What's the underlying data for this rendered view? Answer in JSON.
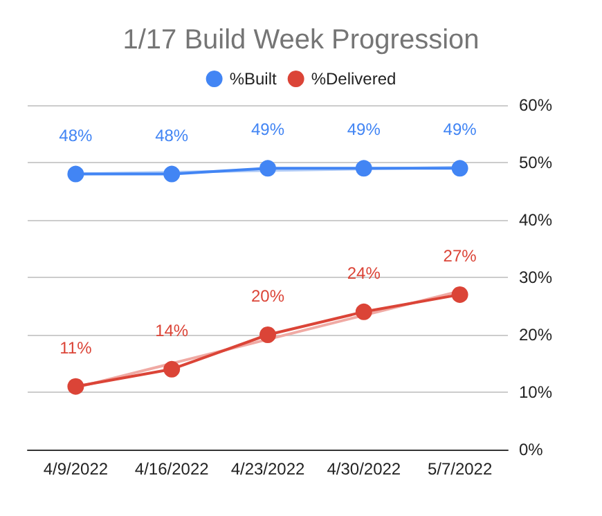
{
  "chart_data": {
    "type": "line",
    "title": "1/17 Build Week Progression",
    "categories": [
      "4/9/2022",
      "4/16/2022",
      "4/23/2022",
      "4/30/2022",
      "5/7/2022"
    ],
    "series": [
      {
        "name": "%Built",
        "color": "#4285f4",
        "values": [
          48,
          48,
          49,
          49,
          49
        ],
        "value_labels": [
          "48%",
          "48%",
          "49%",
          "49%",
          "49%"
        ]
      },
      {
        "name": "%Delivered",
        "color": "#db4437",
        "values": [
          11,
          14,
          20,
          24,
          27
        ],
        "value_labels": [
          "11%",
          "14%",
          "20%",
          "24%",
          "27%"
        ]
      },
      {
        "type": "line",
        "color": "#b3cdf7",
        "marker": "none",
        "x": [
          "4/9/2022",
          "4/16/2022",
          "4/23/2022",
          "4/30/2022",
          "5/7/2022"
        ],
        "values": [
          48,
          48.3,
          48.6,
          48.9,
          49.2
        ]
      },
      {
        "type": "line",
        "color": "#f0aaa4",
        "marker": "none",
        "x": [
          "4/9/2022",
          "4/16/2022",
          "4/23/2022",
          "4/30/2022",
          "5/7/2022"
        ],
        "values": [
          10.8,
          15,
          19.2,
          23.4,
          27.6
        ]
      }
    ],
    "ylim": [
      0,
      60
    ],
    "yticks": [
      {
        "value": 0,
        "label": "0%"
      },
      {
        "value": 10,
        "label": "10%"
      },
      {
        "value": 20,
        "label": "20%"
      },
      {
        "value": 30,
        "label": "30%"
      },
      {
        "value": 40,
        "label": "40%"
      },
      {
        "value": 50,
        "label": "50%"
      },
      {
        "value": 60,
        "label": "60%"
      }
    ],
    "grid": "y",
    "legend": "top",
    "marker": "circle",
    "line_style": "solid"
  }
}
